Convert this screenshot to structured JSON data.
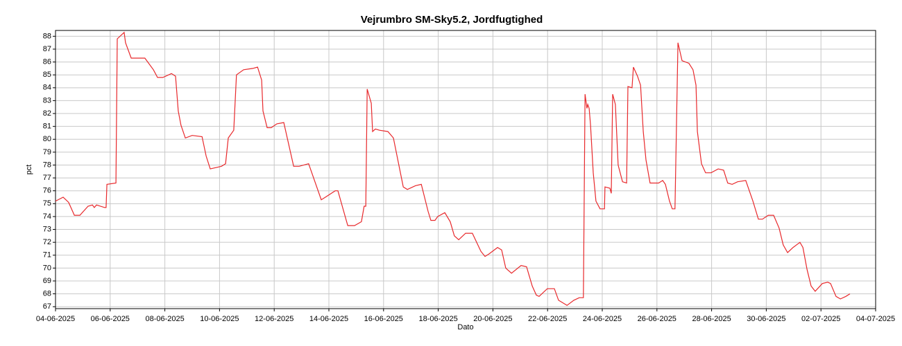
{
  "chart_data": {
    "type": "line",
    "title": "Vejrumbro SM-Sky5.2, Jordfugtighed",
    "x_label": "Dato",
    "y_label": "pct",
    "color": "#e8282b",
    "grid": true,
    "xlim": [
      0,
      30
    ],
    "xticks": [
      {
        "value": 0,
        "label": "04-06-2025"
      },
      {
        "value": 2,
        "label": "06-06-2025"
      },
      {
        "value": 4,
        "label": "08-06-2025"
      },
      {
        "value": 6,
        "label": "10-06-2025"
      },
      {
        "value": 8,
        "label": "12-06-2025"
      },
      {
        "value": 10,
        "label": "14-06-2025"
      },
      {
        "value": 12,
        "label": "16-06-2025"
      },
      {
        "value": 14,
        "label": "18-06-2025"
      },
      {
        "value": 16,
        "label": "20-06-2025"
      },
      {
        "value": 18,
        "label": "22-06-2025"
      },
      {
        "value": 20,
        "label": "24-06-2025"
      },
      {
        "value": 22,
        "label": "26-06-2025"
      },
      {
        "value": 24,
        "label": "28-06-2025"
      },
      {
        "value": 26,
        "label": "30-06-2025"
      },
      {
        "value": 28,
        "label": "02-07-2025"
      },
      {
        "value": 30,
        "label": "04-07-2025"
      }
    ],
    "ylim": [
      66.85,
      88.45
    ],
    "yticks": [
      67,
      68,
      69,
      70,
      71,
      72,
      73,
      74,
      75,
      76,
      77,
      78,
      79,
      80,
      81,
      82,
      83,
      84,
      85,
      86,
      87,
      88
    ],
    "x": [
      0,
      0.28,
      0.48,
      0.69,
      0.89,
      1.19,
      1.35,
      1.42,
      1.5,
      1.8,
      1.85,
      1.88,
      2.21,
      2.26,
      2.51,
      2.56,
      2.77,
      3.27,
      3.58,
      3.73,
      3.93,
      4.24,
      4.39,
      4.49,
      4.59,
      4.75,
      5.0,
      5.36,
      5.51,
      5.66,
      6.07,
      6.22,
      6.32,
      6.52,
      6.62,
      6.88,
      7.21,
      7.39,
      7.54,
      7.59,
      7.74,
      7.89,
      8.1,
      8.35,
      8.71,
      8.91,
      9.26,
      9.72,
      9.87,
      10.23,
      10.33,
      10.69,
      10.94,
      11.19,
      11.29,
      11.35,
      11.4,
      11.55,
      11.6,
      11.7,
      11.85,
      12.16,
      12.36,
      12.72,
      12.87,
      13.17,
      13.38,
      13.63,
      13.73,
      13.88,
      13.98,
      14.24,
      14.44,
      14.59,
      14.75,
      15.0,
      15.25,
      15.56,
      15.71,
      15.86,
      16.17,
      16.32,
      16.47,
      16.68,
      17.03,
      17.23,
      17.44,
      17.59,
      17.69,
      17.99,
      18.25,
      18.4,
      18.71,
      18.96,
      19.16,
      19.31,
      19.37,
      19.44,
      19.47,
      19.52,
      19.57,
      19.67,
      19.77,
      19.92,
      20.08,
      20.1,
      20.28,
      20.33,
      20.38,
      20.48,
      20.58,
      20.74,
      20.89,
      20.94,
      21.09,
      21.14,
      21.29,
      21.4,
      21.5,
      21.6,
      21.75,
      22.06,
      22.21,
      22.31,
      22.46,
      22.56,
      22.66,
      22.77,
      22.92,
      23.17,
      23.32,
      23.43,
      23.48,
      23.63,
      23.78,
      23.98,
      24.24,
      24.44,
      24.59,
      24.75,
      24.95,
      25.25,
      25.51,
      25.71,
      25.86,
      26.07,
      26.27,
      26.47,
      26.62,
      26.78,
      26.98,
      27.23,
      27.34,
      27.49,
      27.64,
      27.79,
      28.05,
      28.25,
      28.35,
      28.55,
      28.71,
      28.91,
      29.06
    ],
    "values": [
      75.2,
      75.5,
      75.1,
      74.1,
      74.1,
      74.8,
      74.9,
      74.7,
      74.9,
      74.7,
      74.7,
      76.5,
      76.6,
      87.8,
      88.3,
      87.5,
      86.3,
      86.3,
      85.4,
      84.8,
      84.8,
      85.1,
      84.9,
      82.2,
      81.1,
      80.1,
      80.3,
      80.2,
      78.7,
      77.7,
      77.9,
      78.1,
      80.1,
      80.7,
      85.0,
      85.4,
      85.5,
      85.6,
      84.6,
      82.2,
      80.9,
      80.9,
      81.2,
      81.3,
      77.9,
      77.9,
      78.1,
      75.3,
      75.5,
      76.0,
      76.0,
      73.3,
      73.3,
      73.6,
      74.8,
      74.8,
      83.9,
      82.8,
      80.6,
      80.8,
      80.7,
      80.6,
      80.1,
      76.3,
      76.1,
      76.4,
      76.5,
      74.4,
      73.7,
      73.7,
      74.0,
      74.3,
      73.6,
      72.5,
      72.2,
      72.7,
      72.7,
      71.3,
      70.9,
      71.1,
      71.6,
      71.4,
      70.0,
      69.6,
      70.2,
      70.1,
      68.6,
      67.9,
      67.8,
      68.4,
      68.4,
      67.5,
      67.1,
      67.5,
      67.7,
      67.7,
      83.5,
      82.4,
      82.7,
      82.4,
      81.1,
      77.4,
      75.2,
      74.6,
      74.6,
      76.3,
      76.2,
      75.8,
      83.5,
      82.7,
      78.0,
      76.7,
      76.6,
      84.1,
      84.0,
      85.6,
      84.9,
      84.2,
      80.6,
      78.4,
      76.6,
      76.6,
      76.8,
      76.5,
      75.2,
      74.6,
      74.6,
      87.5,
      86.1,
      85.9,
      85.4,
      84.2,
      80.6,
      78.1,
      77.4,
      77.4,
      77.7,
      77.6,
      76.6,
      76.5,
      76.7,
      76.8,
      75.2,
      73.8,
      73.8,
      74.1,
      74.1,
      73.1,
      71.8,
      71.2,
      71.6,
      72.0,
      71.6,
      69.9,
      68.6,
      68.2,
      68.8,
      68.9,
      68.8,
      67.8,
      67.6,
      67.8,
      68.0
    ]
  }
}
